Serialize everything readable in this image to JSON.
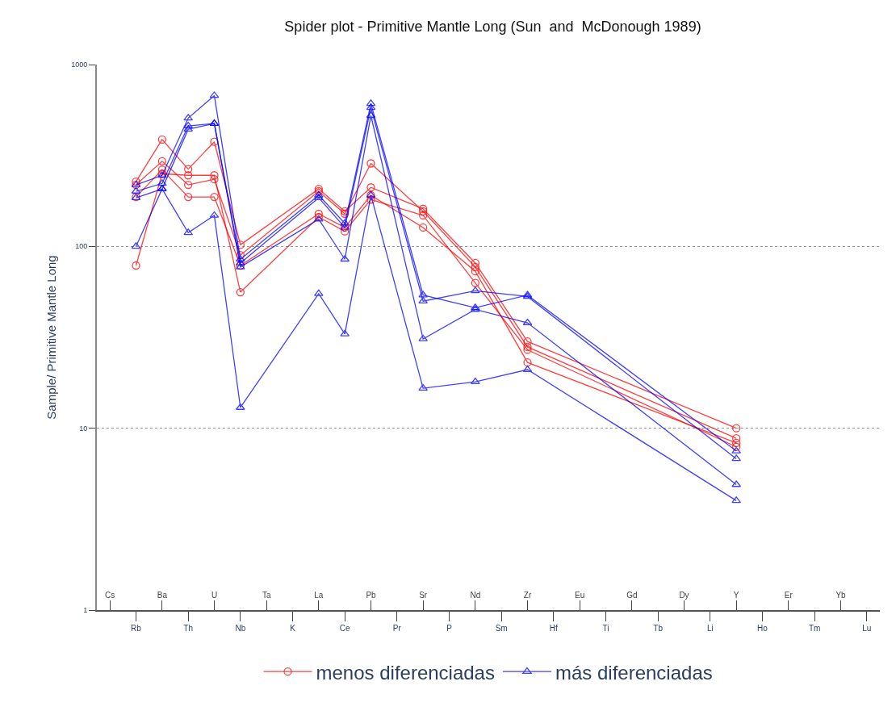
{
  "chart_data": {
    "type": "line",
    "title": "Spider plot - Primitive Mantle Long (Sun  and  McDonough 1989)",
    "ylabel": "Sample/ Primitive Mantle Long",
    "categories": [
      "Cs",
      "Rb",
      "Ba",
      "Th",
      "U",
      "Nb",
      "Ta",
      "K",
      "La",
      "Ce",
      "Pb",
      "Pr",
      "Sr",
      "P",
      "Nd",
      "Sm",
      "Zr",
      "Hf",
      "Eu",
      "Ti",
      "Gd",
      "Tb",
      "Dy",
      "Li",
      "Y",
      "Ho",
      "Er",
      "Tm",
      "Yb",
      "Lu"
    ],
    "log": true,
    "ylim": [
      1,
      1000
    ],
    "yticks": [
      1,
      10,
      100,
      1000
    ],
    "grid": "y",
    "legend": "bottom",
    "line_style": "solid",
    "series": [
      {
        "name": "menos diferenciadas",
        "color": "#ff0000",
        "marker": "circle",
        "values": [
          null,
          227,
          387,
          266,
          376,
          102,
          null,
          null,
          207,
          156,
          211,
          null,
          161,
          null,
          81,
          null,
          30,
          null,
          null,
          null,
          null,
          null,
          null,
          null,
          10,
          null,
          null,
          null,
          null,
          null
        ]
      },
      {
        "color": "#ff0000",
        "marker": "circle",
        "values": [
          null,
          218,
          294,
          218,
          234,
          89.5,
          null,
          null,
          201,
          151,
          286,
          null,
          156,
          null,
          77,
          null,
          28,
          null,
          null,
          null,
          null,
          null,
          null,
          null,
          8.8,
          null,
          null,
          null,
          null,
          null
        ]
      },
      {
        "color": "#ff0000",
        "marker": "circle",
        "values": [
          null,
          187,
          264,
          187,
          187,
          78.5,
          null,
          null,
          151,
          127,
          191,
          null,
          127,
          null,
          73,
          null,
          23,
          null,
          null,
          null,
          null,
          null,
          null,
          null,
          8.3,
          null,
          null,
          null,
          null,
          null
        ]
      },
      {
        "color": "#ff0000",
        "marker": "circle",
        "values": [
          null,
          78.5,
          251,
          246,
          246,
          56,
          null,
          null,
          145,
          121,
          181,
          null,
          148,
          null,
          63,
          null,
          27,
          null,
          null,
          null,
          null,
          null,
          null,
          null,
          7.9,
          null,
          null,
          null,
          null,
          null
        ]
      },
      {
        "name": "más diferenciadas",
        "color": "#0000ff",
        "marker": "triangle",
        "values": [
          null,
          218,
          246,
          508,
          675,
          85,
          null,
          null,
          191,
          134,
          610,
          null,
          54,
          null,
          46,
          null,
          54,
          null,
          null,
          null,
          null,
          null,
          null,
          null,
          7.5,
          null,
          null,
          null,
          null,
          null
        ]
      },
      {
        "color": "#0000ff",
        "marker": "triangle",
        "values": [
          null,
          201,
          222,
          460,
          474,
          81,
          null,
          null,
          185,
          127,
          580,
          null,
          50,
          null,
          57,
          null,
          53,
          null,
          null,
          null,
          null,
          null,
          null,
          null,
          6.8,
          null,
          null,
          null,
          null,
          null
        ]
      },
      {
        "color": "#0000ff",
        "marker": "triangle",
        "values": [
          null,
          185,
          207,
          441,
          474,
          77,
          null,
          null,
          141,
          85,
          524,
          null,
          31,
          null,
          45,
          null,
          38,
          null,
          null,
          null,
          null,
          null,
          null,
          null,
          4.9,
          null,
          null,
          null,
          null,
          null
        ]
      },
      {
        "color": "#0000ff",
        "marker": "triangle",
        "values": [
          null,
          100,
          207,
          119,
          148,
          13,
          null,
          null,
          55,
          33,
          191,
          null,
          16.6,
          null,
          18,
          null,
          21,
          null,
          null,
          null,
          null,
          null,
          null,
          null,
          4.0,
          null,
          null,
          null,
          null,
          null
        ]
      }
    ]
  }
}
